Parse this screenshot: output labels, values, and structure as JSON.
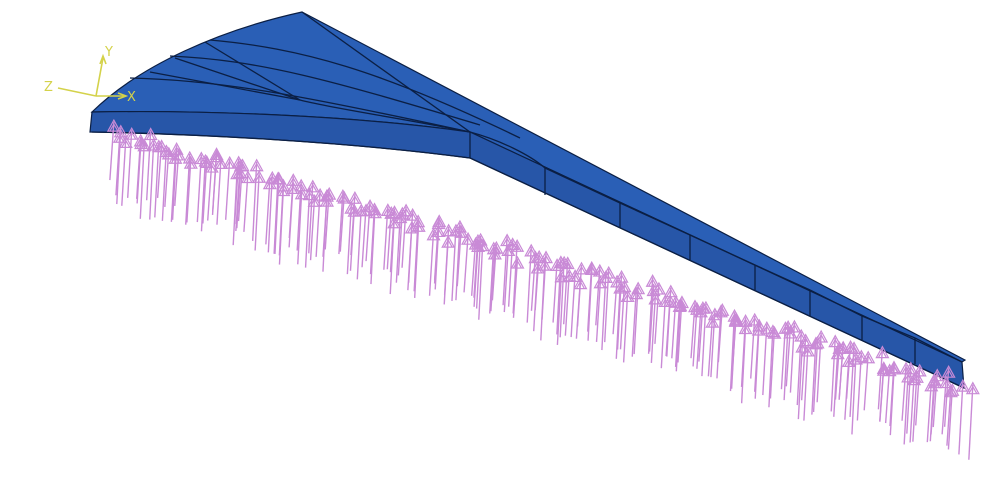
{
  "triad": {
    "x_label": "X",
    "y_label": "Y",
    "z_label": "Z"
  },
  "colors": {
    "wing_top": "#2a5fb6",
    "wing_side": "#2756a8",
    "mesh_line": "#0b1f44",
    "load_arrow": "#c98ad6",
    "triad": "#d4d24a",
    "background": "#ffffff"
  },
  "icons": {
    "coordinate_triad": "xyz-axis-triad-icon",
    "load_arrow": "pressure-load-arrow-icon"
  }
}
